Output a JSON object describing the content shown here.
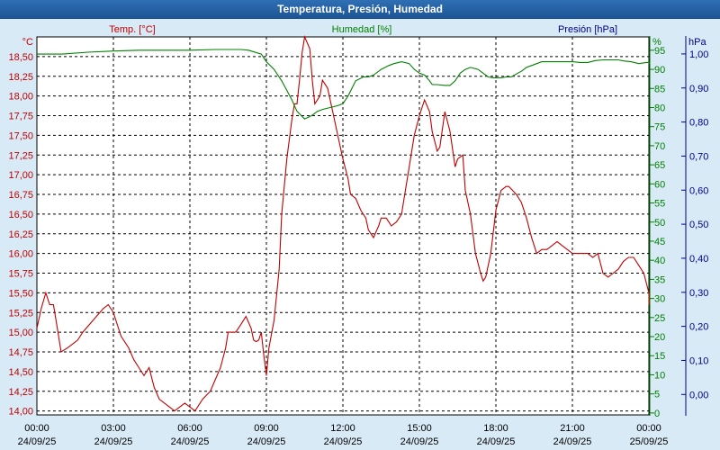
{
  "window": {
    "title": "Temperatura, Presión, Humedad"
  },
  "colors": {
    "temp": "#c00000",
    "hum": "#008000",
    "pres": "#00008b",
    "axis_text": "#000000",
    "bg": "#ffffff",
    "frame": "#d9eaf7"
  },
  "chart_data": {
    "type": "line",
    "title": "Temperatura, Presión, Humedad",
    "grid": true,
    "x_ticks": [
      {
        "time": "00:00",
        "date": "24/09/25"
      },
      {
        "time": "03:00",
        "date": "24/09/25"
      },
      {
        "time": "06:00",
        "date": "24/09/25"
      },
      {
        "time": "09:00",
        "date": "24/09/25"
      },
      {
        "time": "12:00",
        "date": "24/09/25"
      },
      {
        "time": "15:00",
        "date": "24/09/25"
      },
      {
        "time": "18:00",
        "date": "24/09/25"
      },
      {
        "time": "21:00",
        "date": "24/09/25"
      },
      {
        "time": "00:00",
        "date": "25/09/25"
      }
    ],
    "x_range_hours": [
      0,
      24
    ],
    "axes": {
      "temp": {
        "label": "Temp. [°C]",
        "unit": "°C",
        "ylim": [
          13.95,
          18.75
        ],
        "ticks": [
          "14,00",
          "14,25",
          "14,50",
          "14,75",
          "15,00",
          "15,25",
          "15,50",
          "15,75",
          "16,00",
          "16,25",
          "16,50",
          "16,75",
          "17,00",
          "17,25",
          "17,50",
          "17,75",
          "18,00",
          "18,25",
          "18,50"
        ]
      },
      "hum": {
        "label": "Humedad [%]",
        "unit": "%",
        "ylim": [
          -0.5,
          98.5
        ],
        "ticks": [
          "0",
          "5",
          "10",
          "15",
          "20",
          "25",
          "30",
          "35",
          "40",
          "45",
          "50",
          "55",
          "60",
          "65",
          "70",
          "75",
          "80",
          "85",
          "90",
          "95"
        ]
      },
      "pres": {
        "label": "Presión [hPa]",
        "unit": "hPa",
        "ylim": [
          -0.06,
          1.05
        ],
        "ticks": [
          "0,00",
          "0,10",
          "0,20",
          "0,30",
          "0,40",
          "0,50",
          "0,60",
          "0,70",
          "0,80",
          "0,90",
          "1,00"
        ]
      }
    },
    "series": [
      {
        "name": "Temp. [°C]",
        "axis": "temp",
        "points": [
          [
            0,
            15.05
          ],
          [
            0.17,
            15.3
          ],
          [
            0.35,
            15.5
          ],
          [
            0.5,
            15.35
          ],
          [
            0.65,
            15.35
          ],
          [
            0.8,
            15.05
          ],
          [
            0.95,
            14.75
          ],
          [
            1.2,
            14.8
          ],
          [
            1.6,
            14.9
          ],
          [
            1.8,
            15.0
          ],
          [
            2.2,
            15.15
          ],
          [
            2.6,
            15.3
          ],
          [
            2.8,
            15.35
          ],
          [
            3.0,
            15.25
          ],
          [
            3.1,
            15.15
          ],
          [
            3.3,
            14.95
          ],
          [
            3.6,
            14.8
          ],
          [
            3.8,
            14.65
          ],
          [
            4.0,
            14.55
          ],
          [
            4.2,
            14.45
          ],
          [
            4.4,
            14.55
          ],
          [
            4.6,
            14.3
          ],
          [
            4.8,
            14.15
          ],
          [
            5.0,
            14.1
          ],
          [
            5.2,
            14.05
          ],
          [
            5.4,
            14.0
          ],
          [
            5.6,
            14.05
          ],
          [
            5.8,
            14.1
          ],
          [
            6.0,
            14.05
          ],
          [
            6.2,
            14.0
          ],
          [
            6.5,
            14.15
          ],
          [
            6.8,
            14.25
          ],
          [
            7.0,
            14.4
          ],
          [
            7.2,
            14.55
          ],
          [
            7.4,
            14.8
          ],
          [
            7.5,
            15.0
          ],
          [
            7.8,
            15.0
          ],
          [
            8.0,
            15.1
          ],
          [
            8.2,
            15.2
          ],
          [
            8.4,
            15.05
          ],
          [
            8.5,
            14.9
          ],
          [
            8.6,
            14.88
          ],
          [
            8.7,
            14.9
          ],
          [
            8.8,
            15.0
          ],
          [
            8.9,
            14.7
          ],
          [
            9.0,
            14.45
          ],
          [
            9.1,
            14.8
          ],
          [
            9.3,
            15.15
          ],
          [
            9.5,
            15.8
          ],
          [
            9.6,
            16.5
          ],
          [
            9.8,
            17.2
          ],
          [
            10.0,
            17.7
          ],
          [
            10.1,
            17.9
          ],
          [
            10.2,
            17.9
          ],
          [
            10.3,
            18.2
          ],
          [
            10.4,
            18.55
          ],
          [
            10.5,
            18.75
          ],
          [
            10.7,
            18.6
          ],
          [
            10.8,
            18.2
          ],
          [
            10.9,
            17.9
          ],
          [
            11.1,
            18.0
          ],
          [
            11.2,
            18.2
          ],
          [
            11.4,
            18.1
          ],
          [
            11.6,
            17.8
          ],
          [
            11.8,
            17.5
          ],
          [
            12.0,
            17.2
          ],
          [
            12.2,
            16.95
          ],
          [
            12.3,
            16.75
          ],
          [
            12.5,
            16.7
          ],
          [
            12.7,
            16.55
          ],
          [
            12.9,
            16.45
          ],
          [
            13.0,
            16.3
          ],
          [
            13.2,
            16.2
          ],
          [
            13.4,
            16.35
          ],
          [
            13.5,
            16.45
          ],
          [
            13.7,
            16.45
          ],
          [
            13.8,
            16.4
          ],
          [
            13.9,
            16.35
          ],
          [
            14.1,
            16.4
          ],
          [
            14.3,
            16.5
          ],
          [
            14.4,
            16.7
          ],
          [
            14.6,
            17.1
          ],
          [
            14.8,
            17.5
          ],
          [
            15.0,
            17.75
          ],
          [
            15.2,
            17.95
          ],
          [
            15.4,
            17.8
          ],
          [
            15.5,
            17.55
          ],
          [
            15.7,
            17.3
          ],
          [
            15.8,
            17.35
          ],
          [
            16.0,
            17.8
          ],
          [
            16.2,
            17.55
          ],
          [
            16.4,
            17.1
          ],
          [
            16.5,
            17.2
          ],
          [
            16.7,
            17.25
          ],
          [
            16.8,
            16.8
          ],
          [
            17.0,
            16.5
          ],
          [
            17.2,
            16.0
          ],
          [
            17.4,
            15.75
          ],
          [
            17.5,
            15.65
          ],
          [
            17.6,
            15.7
          ],
          [
            17.8,
            16.0
          ],
          [
            18.0,
            16.55
          ],
          [
            18.2,
            16.8
          ],
          [
            18.4,
            16.85
          ],
          [
            18.5,
            16.85
          ],
          [
            18.6,
            16.82
          ],
          [
            18.8,
            16.75
          ],
          [
            19.0,
            16.65
          ],
          [
            19.2,
            16.45
          ],
          [
            19.4,
            16.2
          ],
          [
            19.6,
            16.0
          ],
          [
            19.8,
            16.05
          ],
          [
            20.0,
            16.05
          ],
          [
            20.2,
            16.1
          ],
          [
            20.4,
            16.15
          ],
          [
            20.6,
            16.1
          ],
          [
            20.8,
            16.05
          ],
          [
            21.0,
            16.0
          ],
          [
            21.2,
            16.0
          ],
          [
            21.4,
            16.0
          ],
          [
            21.6,
            16.0
          ],
          [
            21.8,
            15.95
          ],
          [
            22.0,
            16.0
          ],
          [
            22.2,
            15.75
          ],
          [
            22.4,
            15.7
          ],
          [
            22.6,
            15.75
          ],
          [
            22.8,
            15.8
          ],
          [
            23.0,
            15.9
          ],
          [
            23.2,
            15.95
          ],
          [
            23.4,
            15.95
          ],
          [
            23.6,
            15.85
          ],
          [
            23.8,
            15.75
          ],
          [
            24.0,
            15.5
          ],
          [
            24.2,
            15.35
          ]
        ]
      },
      {
        "name": "Humedad [%]",
        "axis": "hum",
        "points": [
          [
            0,
            94
          ],
          [
            1,
            94
          ],
          [
            2,
            94.5
          ],
          [
            3,
            94.8
          ],
          [
            4,
            95
          ],
          [
            5,
            95
          ],
          [
            6,
            95
          ],
          [
            7,
            95.2
          ],
          [
            7.5,
            95.2
          ],
          [
            8,
            95.2
          ],
          [
            8.3,
            95
          ],
          [
            8.8,
            94
          ],
          [
            9.0,
            92
          ],
          [
            9.3,
            90
          ],
          [
            9.6,
            87
          ],
          [
            10.0,
            82
          ],
          [
            10.2,
            79
          ],
          [
            10.5,
            77
          ],
          [
            10.8,
            78
          ],
          [
            11.0,
            79
          ],
          [
            11.2,
            79.5
          ],
          [
            11.5,
            80
          ],
          [
            11.8,
            80.5
          ],
          [
            12.0,
            81
          ],
          [
            12.2,
            83
          ],
          [
            12.5,
            87
          ],
          [
            12.8,
            88
          ],
          [
            13.0,
            88
          ],
          [
            13.2,
            88.5
          ],
          [
            13.5,
            90
          ],
          [
            13.8,
            91
          ],
          [
            14.0,
            91.5
          ],
          [
            14.3,
            92
          ],
          [
            14.6,
            91.5
          ],
          [
            14.8,
            90
          ],
          [
            15.0,
            89
          ],
          [
            15.2,
            88.5
          ],
          [
            15.4,
            87
          ],
          [
            15.5,
            86
          ],
          [
            15.7,
            86
          ],
          [
            16.0,
            85.8
          ],
          [
            16.2,
            85.8
          ],
          [
            16.4,
            87
          ],
          [
            16.6,
            89
          ],
          [
            16.8,
            90
          ],
          [
            17.0,
            90.5
          ],
          [
            17.3,
            90
          ],
          [
            17.5,
            89
          ],
          [
            17.7,
            88
          ],
          [
            17.9,
            87.8
          ],
          [
            18.2,
            87.8
          ],
          [
            18.4,
            88
          ],
          [
            18.6,
            88
          ],
          [
            18.8,
            88.8
          ],
          [
            19.0,
            89.5
          ],
          [
            19.2,
            90.5
          ],
          [
            19.4,
            91
          ],
          [
            19.6,
            91.5
          ],
          [
            19.8,
            92
          ],
          [
            20.2,
            92
          ],
          [
            20.6,
            92
          ],
          [
            21.0,
            92
          ],
          [
            21.3,
            91.8
          ],
          [
            21.6,
            91.8
          ],
          [
            21.9,
            92.3
          ],
          [
            22.2,
            92.5
          ],
          [
            22.5,
            92.5
          ],
          [
            22.8,
            92.5
          ],
          [
            23.0,
            92.2
          ],
          [
            23.3,
            92
          ],
          [
            23.6,
            91.5
          ],
          [
            23.9,
            91.8
          ],
          [
            24.2,
            91.8
          ],
          [
            24.5,
            91.5
          ]
        ]
      }
    ]
  }
}
